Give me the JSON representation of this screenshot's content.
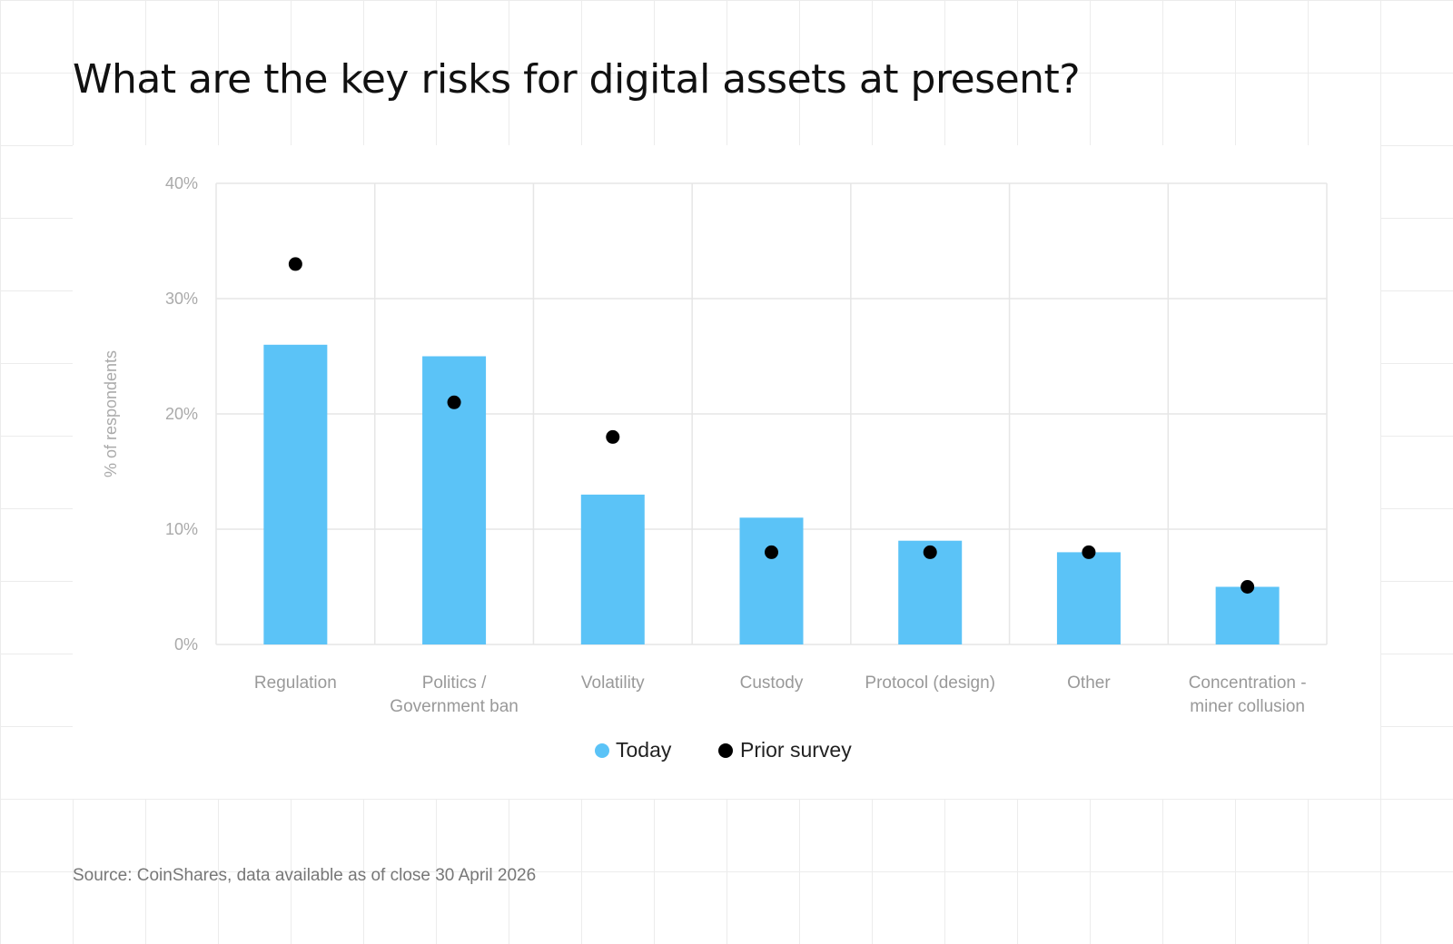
{
  "title": "What are the key risks for digital assets at present?",
  "source": "Source: CoinShares, data available as of close 30 April 2026",
  "colors": {
    "today": "#5bc3f7",
    "prior": "#000000",
    "grid": "#e6e6e6",
    "tick_text": "#aaaaaa",
    "category_text": "#999999",
    "legend_text": "#222222"
  },
  "chart_data": {
    "type": "bar",
    "ylabel": "% of respondents",
    "xlabel": "",
    "ylim": [
      0,
      40
    ],
    "yticks": [
      "0%",
      "10%",
      "20%",
      "30%",
      "40%"
    ],
    "ytick_values": [
      0,
      10,
      20,
      30,
      40
    ],
    "grid": true,
    "legend_position": "bottom-center",
    "categories": [
      "Regulation",
      "Politics / Government ban",
      "Volatility",
      "Custody",
      "Protocol (design)",
      "Other",
      "Concentration - miner collusion"
    ],
    "category_lines": [
      [
        "Regulation"
      ],
      [
        "Politics /",
        "Government ban"
      ],
      [
        "Volatility"
      ],
      [
        "Custody"
      ],
      [
        "Protocol (design)"
      ],
      [
        "Other"
      ],
      [
        "Concentration -",
        "miner collusion"
      ]
    ],
    "series": [
      {
        "name": "Today",
        "mark": "bar",
        "values": [
          26,
          25,
          13,
          11,
          9,
          8,
          5
        ]
      },
      {
        "name": "Prior survey",
        "mark": "dot",
        "values": [
          33,
          21,
          18,
          8,
          8,
          8,
          5
        ]
      }
    ]
  }
}
